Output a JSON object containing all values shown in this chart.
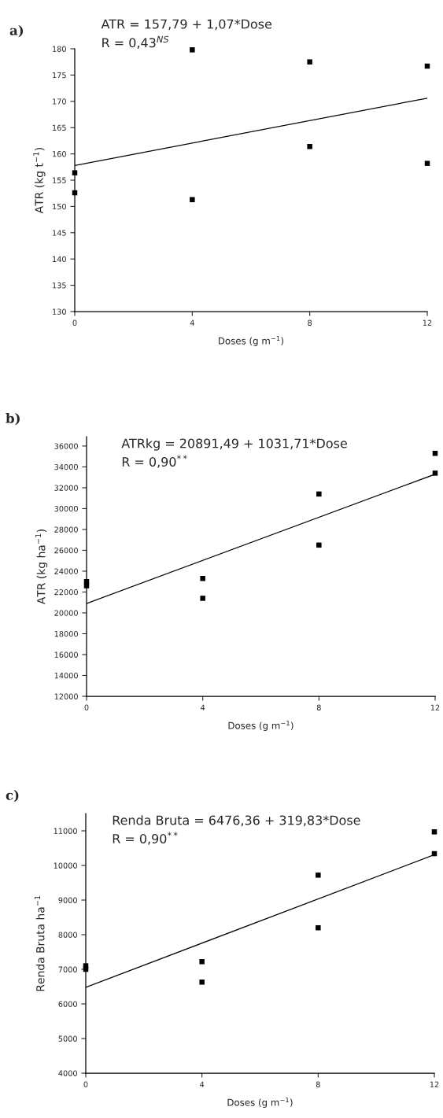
{
  "chart_data": [
    {
      "type": "scatter",
      "title": "a)",
      "xlabel": "Doses (g m$^{−1}$)",
      "ylabel": "ATR (kg t$^{−1}$)",
      "annotations": [
        "ATR = 157,79 + 1,07*Dose",
        "R = 0,43$^{NS}$"
      ],
      "xlim": [
        0,
        12
      ],
      "xticks": [
        0,
        4,
        8,
        12
      ],
      "ylim": [
        130,
        180
      ],
      "yticks": [
        130,
        135,
        140,
        145,
        150,
        155,
        160,
        165,
        170,
        175,
        180
      ],
      "grid": false,
      "legend": false,
      "series": [
        {
          "marker": "square",
          "color": "#000000",
          "x": [
            0,
            0,
            4,
            4,
            8,
            8,
            12,
            12
          ],
          "values": [
            156.4,
            152.6,
            179.8,
            151.3,
            177.5,
            161.4,
            176.7,
            158.2
          ]
        },
        {
          "type": "line",
          "color": "#000000",
          "x": [
            0,
            12
          ],
          "values": [
            157.8,
            170.6
          ]
        }
      ]
    },
    {
      "type": "scatter",
      "title": "b)",
      "xlabel": "Doses (g m$^{−1}$)",
      "ylabel": "ATR (kg ha$^{−1}$)",
      "annotations": [
        "ATRkg = 20891,49 + 1031,71*Dose",
        "R = 0,90$^{**}$"
      ],
      "xlim": [
        0,
        12
      ],
      "xticks": [
        0,
        4,
        8,
        12
      ],
      "ylim": [
        12000,
        36900
      ],
      "yticks": [
        12000,
        14000,
        16000,
        18000,
        20000,
        22000,
        24000,
        26000,
        28000,
        30000,
        32000,
        34000,
        36000
      ],
      "grid": false,
      "legend": false,
      "series": [
        {
          "marker": "square",
          "color": "#000000",
          "x": [
            0,
            0,
            4,
            4,
            8,
            8,
            12,
            12
          ],
          "values": [
            23000,
            22600,
            23300,
            21400,
            31400,
            26500,
            35300,
            33400
          ]
        },
        {
          "type": "line",
          "color": "#000000",
          "x": [
            0,
            12
          ],
          "values": [
            20900,
            33300
          ]
        }
      ]
    },
    {
      "type": "scatter",
      "title": "c)",
      "xlabel": "Doses (g m$^{−1}$)",
      "ylabel": "Renda Bruta ha$^{−1}$",
      "annotations": [
        "Renda Bruta = 6476,36 + 319,83*Dose",
        "R = 0,90$^{**}$"
      ],
      "xlim": [
        0,
        12
      ],
      "xticks": [
        0,
        4,
        8,
        12
      ],
      "ylim": [
        4000,
        11500
      ],
      "yticks": [
        4000,
        5000,
        6000,
        7000,
        8000,
        9000,
        10000,
        11000
      ],
      "grid": false,
      "legend": false,
      "series": [
        {
          "marker": "square",
          "color": "#000000",
          "x": [
            0,
            0,
            4,
            4,
            8,
            8,
            12,
            12
          ],
          "values": [
            7100,
            7000,
            7220,
            6630,
            9720,
            8200,
            10970,
            10340
          ]
        },
        {
          "type": "line",
          "color": "#000000",
          "x": [
            0,
            12
          ],
          "values": [
            6480,
            10310
          ]
        }
      ]
    }
  ]
}
